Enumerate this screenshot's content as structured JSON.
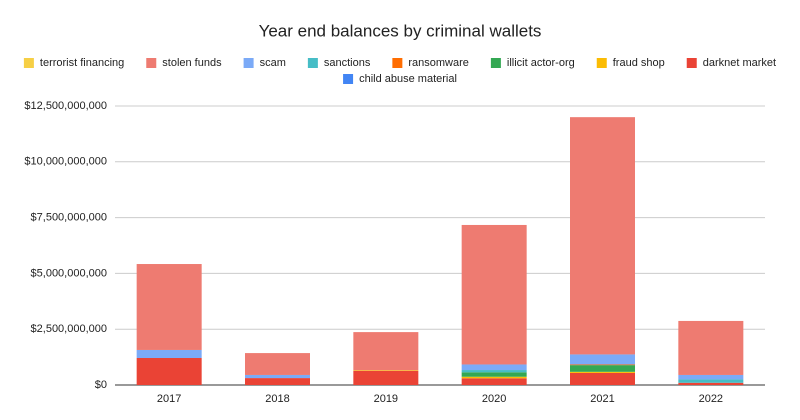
{
  "chart_data": {
    "type": "stacked_bar",
    "title": "Year end balances by criminal wallets",
    "categories": [
      "2017",
      "2018",
      "2019",
      "2020",
      "2021",
      "2022"
    ],
    "series": [
      {
        "name": "terrorist financing",
        "color": "#f6cf45",
        "values": [
          0,
          0,
          0,
          0,
          0,
          0
        ]
      },
      {
        "name": "stolen funds",
        "color": "#ee7b71",
        "values": [
          3850000000,
          980000000,
          1710000000,
          6250000000,
          10630000000,
          2420000000
        ]
      },
      {
        "name": "scam",
        "color": "#7baaf7",
        "values": [
          360000000,
          140000000,
          0,
          250000000,
          450000000,
          200000000
        ]
      },
      {
        "name": "sanctions",
        "color": "#46bdc6",
        "values": [
          0,
          0,
          0,
          100000000,
          0,
          150000000
        ]
      },
      {
        "name": "ransomware",
        "color": "#ff6d01",
        "values": [
          0,
          0,
          0,
          0,
          30000000,
          0
        ]
      },
      {
        "name": "illicit actor-org",
        "color": "#34a853",
        "values": [
          0,
          0,
          0,
          200000000,
          300000000,
          0
        ]
      },
      {
        "name": "fraud shop",
        "color": "#fbbc04",
        "values": [
          0,
          0,
          30000000,
          70000000,
          50000000,
          0
        ]
      },
      {
        "name": "darknet market",
        "color": "#ea4335",
        "values": [
          1210000000,
          310000000,
          630000000,
          300000000,
          540000000,
          100000000
        ]
      },
      {
        "name": "child abuse material",
        "color": "#4285f4",
        "values": [
          0,
          0,
          0,
          0,
          0,
          0
        ]
      }
    ],
    "ylim": [
      0,
      12500000000
    ],
    "yticks": [
      {
        "value": 0,
        "label": "$0"
      },
      {
        "value": 2500000000,
        "label": "$2,500,000,000"
      },
      {
        "value": 5000000000,
        "label": "$5,000,000,000"
      },
      {
        "value": 7500000000,
        "label": "$7,500,000,000"
      },
      {
        "value": 10000000000,
        "label": "$10,000,000,000"
      },
      {
        "value": 12500000000,
        "label": "$12,500,000,000"
      }
    ],
    "grid": true
  }
}
